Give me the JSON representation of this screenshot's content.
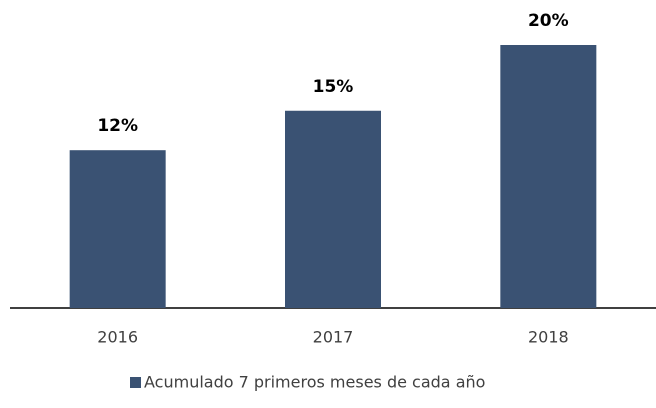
{
  "chart_data": {
    "type": "bar",
    "categories": [
      "2016",
      "2017",
      "2018"
    ],
    "series": [
      {
        "name": "Acumulado 7 primeros meses de cada año",
        "color": "#3a5273",
        "values": [
          12,
          15,
          20
        ],
        "value_labels": [
          "12%",
          "15%",
          "20%"
        ]
      }
    ]
  }
}
